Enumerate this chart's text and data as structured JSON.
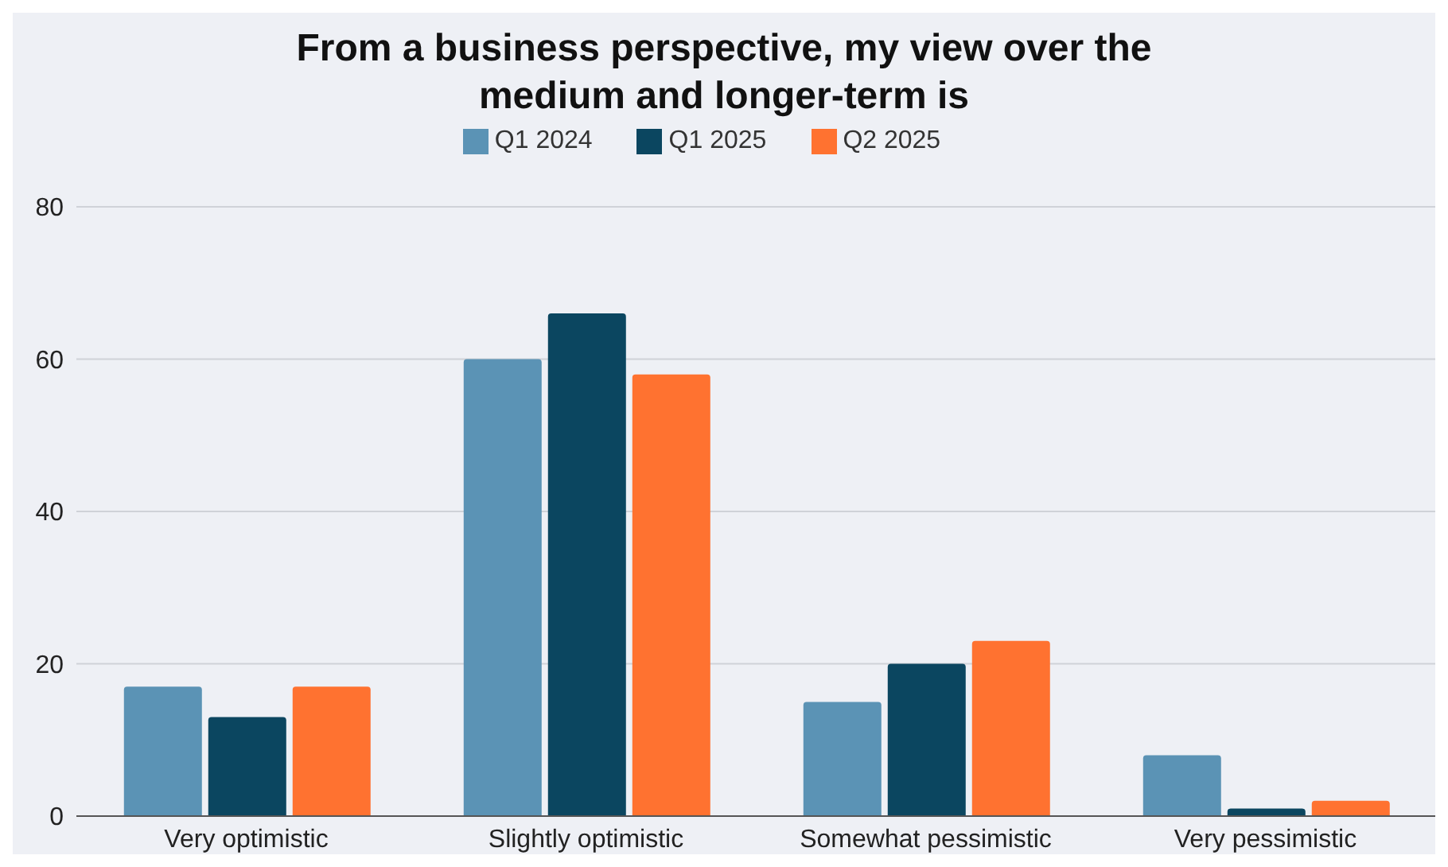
{
  "chart_data": {
    "type": "bar",
    "title": "From a business perspective, my view over the medium and longer-term is",
    "categories": [
      "Very optimistic",
      "Slightly optimistic",
      "Somewhat pessimistic",
      "Very pessimistic"
    ],
    "series": [
      {
        "name": "Q1 2024",
        "color": "#5b93b5",
        "values": [
          17,
          60,
          15,
          8
        ]
      },
      {
        "name": "Q1 2025",
        "color": "#0b4660",
        "values": [
          13,
          66,
          20,
          1
        ]
      },
      {
        "name": "Q2 2025",
        "color": "#ff7230",
        "values": [
          17,
          58,
          23,
          2
        ]
      }
    ],
    "ylim": [
      0,
      80
    ],
    "yticks": [
      0,
      20,
      40,
      60,
      80
    ],
    "grid": "y",
    "legend": "top"
  }
}
